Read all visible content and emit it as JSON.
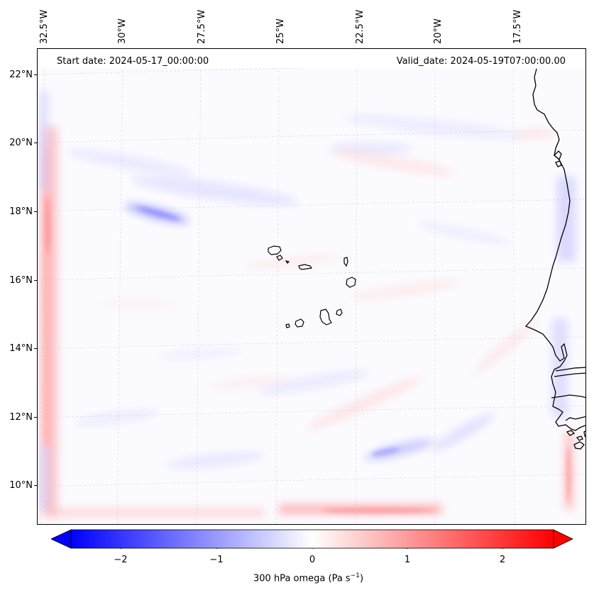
{
  "header": {
    "start_date": "Start date: 2024-05-17_00:00:00",
    "valid_date": "Valid_date: 2024-05-19T07:00:00.00"
  },
  "axes": {
    "lon_labels": [
      "32.5°W",
      "30°W",
      "27.5°W",
      "25°W",
      "22.5°W",
      "20°W",
      "17.5°W"
    ],
    "lat_labels": [
      "22°N",
      "20°N",
      "18°N",
      "16°N",
      "14°N",
      "12°N",
      "10°N"
    ]
  },
  "colorbar": {
    "title": "300 hPa omega (Pa s",
    "title_sup": "−1",
    "title_end": ")",
    "tick_labels": [
      "−2",
      "−1",
      "0",
      "1",
      "2"
    ],
    "range": [
      -2.6,
      2.6
    ],
    "colormap": "bwr",
    "low_color": "#0000ff",
    "mid_color": "#ffffff",
    "high_color": "#ff0000",
    "extend": "both"
  },
  "map": {
    "projection": "Lambert conformal",
    "gridlines": true,
    "coastline_color": "#000000",
    "features": [
      "Cape Verde islands",
      "West African coastline (Senegal, Gambia, Guinea-Bissau)"
    ]
  }
}
